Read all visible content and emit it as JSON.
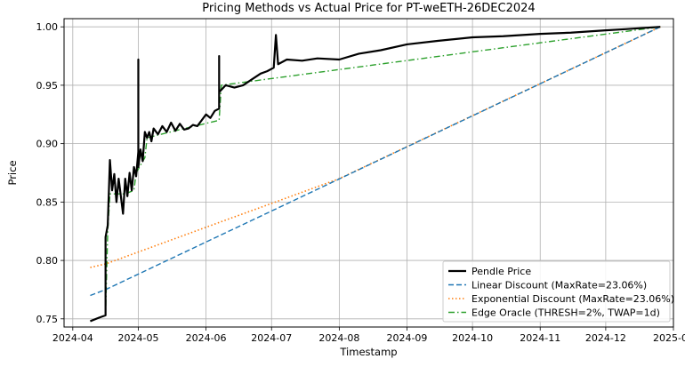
{
  "chart_data": {
    "type": "line",
    "title": "Pricing Methods vs Actual Price for PT-weETH-26DEC2024",
    "xlabel": "Timestamp",
    "ylabel": "Price",
    "xlim": [
      "2024-03-28",
      "2025-01-01"
    ],
    "ylim": [
      0.743,
      1.007
    ],
    "x_ticks": [
      "2024-04",
      "2024-05",
      "2024-06",
      "2024-07",
      "2024-08",
      "2024-09",
      "2024-10",
      "2024-11",
      "2024-12",
      "2025-01"
    ],
    "y_ticks": [
      "0.75",
      "0.80",
      "0.85",
      "0.90",
      "0.95",
      "1.00"
    ],
    "grid": true,
    "legend_position": "lower-right",
    "series": [
      {
        "name": "Pendle Price",
        "color": "#000000",
        "style": "solid",
        "points": [
          [
            "2024-04-09",
            0.748
          ],
          [
            "2024-04-13",
            0.751
          ],
          [
            "2024-04-16",
            0.753
          ],
          [
            "2024-04-16",
            0.82
          ],
          [
            "2024-04-17",
            0.83
          ],
          [
            "2024-04-18",
            0.886
          ],
          [
            "2024-04-19",
            0.86
          ],
          [
            "2024-04-20",
            0.874
          ],
          [
            "2024-04-21",
            0.85
          ],
          [
            "2024-04-22",
            0.87
          ],
          [
            "2024-04-23",
            0.855
          ],
          [
            "2024-04-24",
            0.84
          ],
          [
            "2024-04-25",
            0.87
          ],
          [
            "2024-04-26",
            0.855
          ],
          [
            "2024-04-27",
            0.875
          ],
          [
            "2024-04-28",
            0.86
          ],
          [
            "2024-04-29",
            0.88
          ],
          [
            "2024-04-30",
            0.872
          ],
          [
            "2024-05-01",
            0.893
          ],
          [
            "2024-05-01",
            0.972
          ],
          [
            "2024-05-01",
            0.88
          ],
          [
            "2024-05-02",
            0.895
          ],
          [
            "2024-05-03",
            0.885
          ],
          [
            "2024-05-04",
            0.91
          ],
          [
            "2024-05-05",
            0.905
          ],
          [
            "2024-05-06",
            0.91
          ],
          [
            "2024-05-07",
            0.902
          ],
          [
            "2024-05-08",
            0.913
          ],
          [
            "2024-05-10",
            0.908
          ],
          [
            "2024-05-12",
            0.915
          ],
          [
            "2024-05-14",
            0.91
          ],
          [
            "2024-05-16",
            0.918
          ],
          [
            "2024-05-18",
            0.911
          ],
          [
            "2024-05-20",
            0.917
          ],
          [
            "2024-05-22",
            0.912
          ],
          [
            "2024-05-24",
            0.913
          ],
          [
            "2024-05-26",
            0.916
          ],
          [
            "2024-05-28",
            0.915
          ],
          [
            "2024-05-30",
            0.92
          ],
          [
            "2024-06-01",
            0.925
          ],
          [
            "2024-06-03",
            0.922
          ],
          [
            "2024-06-05",
            0.928
          ],
          [
            "2024-06-07",
            0.93
          ],
          [
            "2024-06-07",
            0.975
          ],
          [
            "2024-06-07",
            0.944
          ],
          [
            "2024-06-10",
            0.95
          ],
          [
            "2024-06-14",
            0.948
          ],
          [
            "2024-06-18",
            0.95
          ],
          [
            "2024-06-22",
            0.955
          ],
          [
            "2024-06-26",
            0.96
          ],
          [
            "2024-06-29",
            0.962
          ],
          [
            "2024-07-02",
            0.965
          ],
          [
            "2024-07-03",
            0.993
          ],
          [
            "2024-07-04",
            0.968
          ],
          [
            "2024-07-08",
            0.972
          ],
          [
            "2024-07-15",
            0.971
          ],
          [
            "2024-07-22",
            0.973
          ],
          [
            "2024-08-01",
            0.972
          ],
          [
            "2024-08-10",
            0.977
          ],
          [
            "2024-08-20",
            0.98
          ],
          [
            "2024-09-01",
            0.985
          ],
          [
            "2024-09-15",
            0.988
          ],
          [
            "2024-10-01",
            0.991
          ],
          [
            "2024-10-15",
            0.992
          ],
          [
            "2024-11-01",
            0.994
          ],
          [
            "2024-11-15",
            0.995
          ],
          [
            "2024-12-01",
            0.997
          ],
          [
            "2024-12-10",
            0.998
          ],
          [
            "2024-12-26",
            1.0
          ]
        ]
      },
      {
        "name": "Linear Discount (MaxRate=23.06%)",
        "color": "#1f77b4",
        "style": "dashed",
        "points": [
          [
            "2024-04-09",
            0.77
          ],
          [
            "2024-04-16",
            0.775
          ],
          [
            "2024-12-26",
            1.0
          ]
        ]
      },
      {
        "name": "Exponential Discount (MaxRate=23.06%)",
        "color": "#ff7f0e",
        "style": "dotted",
        "points": [
          [
            "2024-04-09",
            0.794
          ],
          [
            "2024-04-16",
            0.797
          ],
          [
            "2024-08-01",
            0.87
          ],
          [
            "2024-12-26",
            1.0
          ]
        ]
      },
      {
        "name": "Edge Oracle (THRESH=2%, TWAP=1d)",
        "color": "#2ca02c",
        "style": "dashdot",
        "points": [
          [
            "2024-04-09",
            0.748
          ],
          [
            "2024-04-16",
            0.753
          ],
          [
            "2024-04-17",
            0.825
          ],
          [
            "2024-04-18",
            0.857
          ],
          [
            "2024-04-25",
            0.857
          ],
          [
            "2024-04-29",
            0.86
          ],
          [
            "2024-04-30",
            0.875
          ],
          [
            "2024-05-04",
            0.888
          ],
          [
            "2024-05-05",
            0.905
          ],
          [
            "2024-05-20",
            0.912
          ],
          [
            "2024-06-07",
            0.92
          ],
          [
            "2024-06-08",
            0.95
          ],
          [
            "2024-12-26",
            1.0
          ]
        ]
      }
    ]
  }
}
